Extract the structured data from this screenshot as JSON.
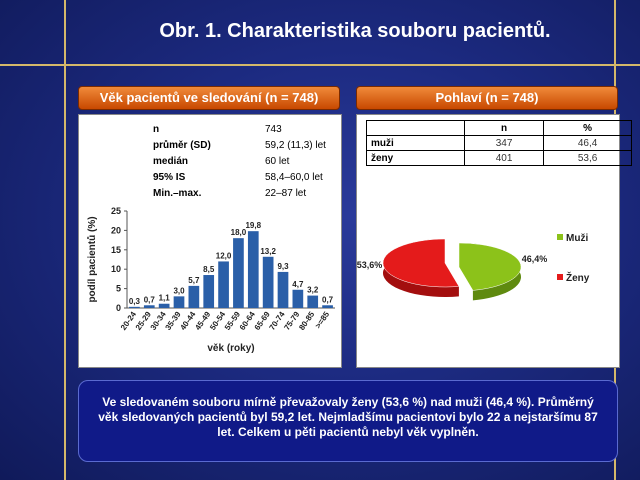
{
  "slide": {
    "title": "Obr. 1. Charakteristika souboru pacientů.",
    "summary": "Ve sledovaném souboru mírně převažovaly ženy (53,6 %) nad muži (46,4 %). Průměrný věk sledovaných pacientů byl 59,2 let. Nejmladšímu pacientovi bylo 22 a nejstaršímu 87 let. Celkem u pěti pacientů nebyl věk vyplněn."
  },
  "age_panel": {
    "header": "Věk pacientů ve sledování (n = 748)",
    "stats": [
      {
        "label": "n",
        "value": "743"
      },
      {
        "label": "průměr (SD)",
        "value": "59,2 (11,3) let"
      },
      {
        "label": "medián",
        "value": "60 let"
      },
      {
        "label": "95% IS",
        "value": "58,4–60,0 let"
      },
      {
        "label": "Min.–max.",
        "value": "22–87 let"
      }
    ]
  },
  "sex_panel": {
    "header": "Pohlaví (n = 748)",
    "table": {
      "columns": [
        "",
        "n",
        "%"
      ],
      "rows": [
        {
          "label": "muži",
          "n": "347",
          "pct": "46,4"
        },
        {
          "label": "ženy",
          "n": "401",
          "pct": "53,6"
        }
      ]
    }
  },
  "chart_data": [
    {
      "type": "bar",
      "categories": [
        "20-24",
        "25-29",
        "30-34",
        "35-39",
        "40-44",
        "45-49",
        "50-54",
        "55-59",
        "60-64",
        "65-69",
        "70-74",
        "75-79",
        "80-85",
        ">=85"
      ],
      "values": [
        0.3,
        0.7,
        1.1,
        3.0,
        5.7,
        8.5,
        12.0,
        18.0,
        19.8,
        13.2,
        9.3,
        4.7,
        3.2,
        0.7
      ],
      "data_labels": [
        "0,3",
        "0,7",
        "1,1",
        "3,0",
        "5,7",
        "8,5",
        "12,0",
        "18,0",
        "19,8",
        "13,2",
        "9,3",
        "4,7",
        "3,2",
        "0,7"
      ],
      "xlabel": "věk (roky)",
      "ylabel": "podíl pacientů (%)",
      "ylim": [
        0,
        25
      ],
      "yticks": [
        0,
        5,
        10,
        15,
        20,
        25
      ],
      "color": "#2a5fa8"
    },
    {
      "type": "pie",
      "categories": [
        "Muži",
        "Ženy"
      ],
      "values": [
        46.4,
        53.6
      ],
      "data_labels": [
        "46,4%",
        "53,6%"
      ],
      "colors": [
        "#8cc21a",
        "#e41b1b"
      ],
      "legend": "right"
    }
  ]
}
